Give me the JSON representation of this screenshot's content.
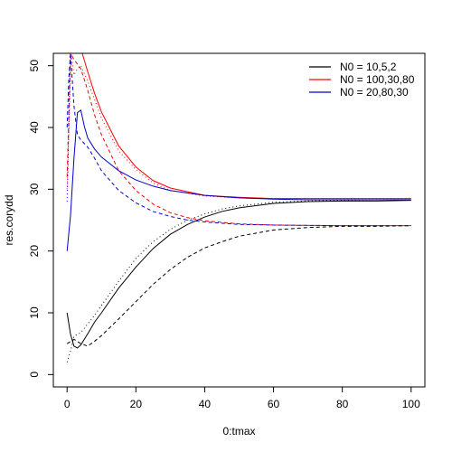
{
  "chart_data": {
    "type": "line",
    "title": "",
    "xlabel": "0:tmax",
    "ylabel": "res.corydd",
    "xlim": [
      -4,
      104
    ],
    "ylim": [
      -2,
      52
    ],
    "xticks": [
      0,
      20,
      40,
      60,
      80,
      100
    ],
    "yticks": [
      0,
      10,
      20,
      30,
      40,
      50
    ],
    "grid": false,
    "legend": {
      "placement": "top-right",
      "entries": [
        {
          "label": "N0 =  10,5,2",
          "color": "#000000"
        },
        {
          "label": "N0 =  100,30,80",
          "color": "#ff0000"
        },
        {
          "label": "N0 =  20,80,30",
          "color": "#0000cc"
        }
      ]
    },
    "series": [
      {
        "group": "N0 =  10,5,2",
        "color": "#000000",
        "style": "solid",
        "x": [
          0,
          1,
          2,
          3,
          4,
          6,
          8,
          10,
          15,
          20,
          25,
          30,
          35,
          40,
          45,
          50,
          60,
          70,
          80,
          90,
          100
        ],
        "y": [
          10,
          6.5,
          4.6,
          4.3,
          4.8,
          6.6,
          8.5,
          10.0,
          14.0,
          17.4,
          20.4,
          22.7,
          24.3,
          25.5,
          26.4,
          27.0,
          27.7,
          28.0,
          28.1,
          28.1,
          28.2
        ]
      },
      {
        "group": "N0 =  10,5,2",
        "color": "#000000",
        "style": "dashed",
        "x": [
          0,
          2,
          4,
          6,
          8,
          10,
          15,
          20,
          25,
          30,
          35,
          40,
          45,
          50,
          60,
          70,
          80,
          90,
          100
        ],
        "y": [
          5,
          5.7,
          5.0,
          4.6,
          5.4,
          6.3,
          9.0,
          11.8,
          14.6,
          17.0,
          19.0,
          20.5,
          21.5,
          22.4,
          23.4,
          23.8,
          24.0,
          24.0,
          24.1
        ]
      },
      {
        "group": "N0 =  10,5,2",
        "color": "#000000",
        "style": "dotted",
        "x": [
          0,
          1,
          2,
          4,
          6,
          8,
          10,
          15,
          20,
          25,
          30,
          35,
          40,
          45,
          50,
          60,
          70,
          80,
          90,
          100
        ],
        "y": [
          2,
          3.8,
          6.2,
          6.8,
          8.2,
          9.6,
          11.2,
          15.1,
          18.8,
          21.5,
          23.5,
          25.0,
          26.0,
          26.8,
          27.3,
          27.9,
          28.1,
          28.2,
          28.3,
          28.3
        ]
      },
      {
        "group": "N0 =  100,30,80",
        "color": "#ff0000",
        "style": "solid",
        "x": [
          4.4,
          6,
          8,
          10,
          15,
          20,
          25,
          30,
          40,
          50,
          60,
          70,
          80,
          90,
          100
        ],
        "y": [
          52,
          49.0,
          45.5,
          42.5,
          37.0,
          33.6,
          31.4,
          30.2,
          29.0,
          28.7,
          28.5,
          28.5,
          28.5,
          28.5,
          28.5
        ]
      },
      {
        "group": "N0 =  100,30,80",
        "color": "#ff0000",
        "style": "dashed",
        "x": [
          0,
          0.5,
          1,
          2,
          4,
          6,
          8,
          10,
          15,
          20,
          25,
          30,
          35,
          40,
          50,
          60,
          80,
          100
        ],
        "y": [
          32,
          42,
          52,
          51,
          49.5,
          46.0,
          42.0,
          38.8,
          33.0,
          29.8,
          27.6,
          26.2,
          25.4,
          24.9,
          24.4,
          24.2,
          24.1,
          24.1
        ]
      },
      {
        "group": "N0 =  100,30,80",
        "color": "#ff0000",
        "style": "dotted",
        "x": [
          0,
          1.2,
          2,
          3,
          4,
          6,
          8,
          10,
          15,
          20,
          25,
          30,
          40,
          50,
          60,
          80,
          100
        ],
        "y": [
          30,
          52,
          48.5,
          49.5,
          50.0,
          47.5,
          44.5,
          41.5,
          36.2,
          33.2,
          31.0,
          29.8,
          28.9,
          28.6,
          28.5,
          28.5,
          28.5
        ]
      },
      {
        "group": "N0 =  20,80,30",
        "color": "#0000cc",
        "style": "solid",
        "x": [
          0,
          1,
          2,
          3,
          4,
          5,
          6,
          8,
          10,
          15,
          20,
          25,
          30,
          40,
          50,
          60,
          70,
          80,
          90,
          100
        ],
        "y": [
          20,
          25.8,
          35.0,
          42.4,
          42.8,
          40.2,
          38.3,
          36.5,
          35.2,
          33.0,
          31.5,
          30.5,
          29.8,
          29.0,
          28.6,
          28.4,
          28.3,
          28.3,
          28.3,
          28.3
        ]
      },
      {
        "group": "N0 =  20,80,30",
        "color": "#0000cc",
        "style": "dashed",
        "x": [
          0,
          0.5,
          1,
          2,
          3,
          4,
          6,
          8,
          10,
          15,
          20,
          25,
          30,
          35,
          40,
          50,
          60,
          80,
          100
        ],
        "y": [
          40,
          48,
          52,
          43.5,
          38.8,
          38.0,
          36.8,
          35.0,
          33.0,
          29.8,
          27.8,
          26.4,
          25.6,
          25.0,
          24.7,
          24.3,
          24.2,
          24.1,
          24.1
        ]
      },
      {
        "group": "N0 =  20,80,30",
        "color": "#0000cc",
        "style": "dotted",
        "x": [
          0,
          0.5,
          0.9
        ],
        "y": [
          28,
          40,
          52
        ]
      }
    ]
  }
}
